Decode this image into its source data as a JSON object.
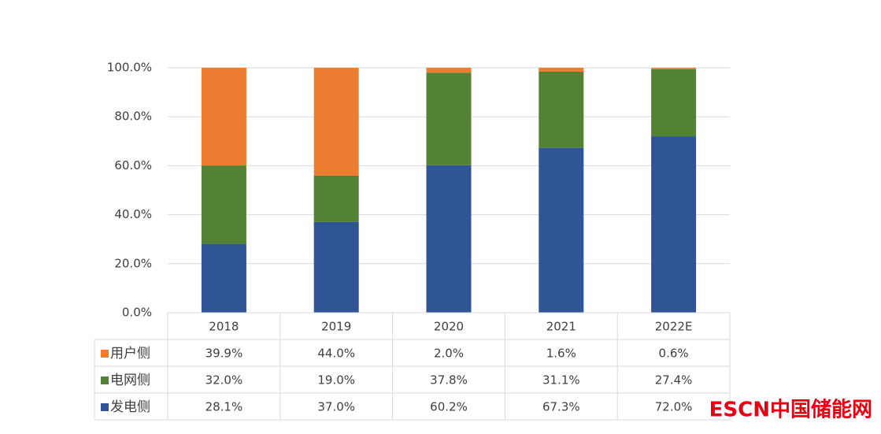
{
  "chart_data": {
    "type": "stacked_bar",
    "categories": [
      "2018",
      "2019",
      "2020",
      "2021",
      "2022E"
    ],
    "series": [
      {
        "name": "发电侧",
        "color": "#2f5597",
        "values": [
          28.1,
          37.0,
          60.2,
          67.3,
          72.0
        ],
        "value_labels": [
          "28.1%",
          "37.0%",
          "60.2%",
          "67.3%",
          "72.0%"
        ]
      },
      {
        "name": "电网侧",
        "color": "#548235",
        "values": [
          32.0,
          19.0,
          37.8,
          31.1,
          27.4
        ],
        "value_labels": [
          "32.0%",
          "19.0%",
          "37.8%",
          "31.1%",
          "27.4%"
        ]
      },
      {
        "name": "用户侧",
        "color": "#ed7d31",
        "values": [
          39.9,
          44.0,
          2.0,
          1.6,
          0.6
        ],
        "value_labels": [
          "39.9%",
          "44.0%",
          "2.0%",
          "1.6%",
          "0.6%"
        ]
      }
    ],
    "ylim": [
      0,
      100
    ],
    "yticks": [
      {
        "value": 0,
        "label": "0.0%"
      },
      {
        "value": 20,
        "label": "20.0%"
      },
      {
        "value": 40,
        "label": "40.0%"
      },
      {
        "value": 60,
        "label": "60.0%"
      },
      {
        "value": 80,
        "label": "80.0%"
      },
      {
        "value": 100,
        "label": "100.0%"
      }
    ],
    "grid": true,
    "watermark": "ESCN中国储能网"
  }
}
